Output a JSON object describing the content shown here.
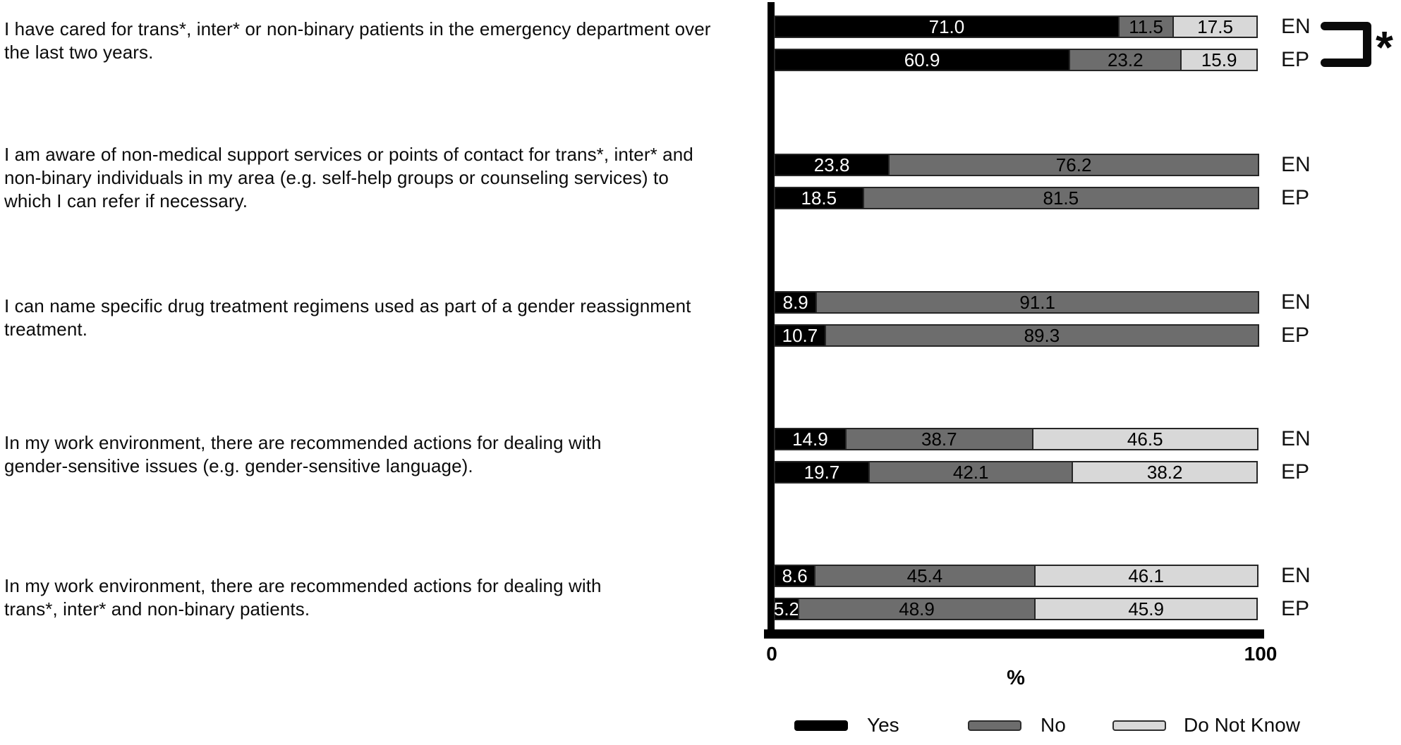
{
  "chart_data": {
    "type": "bar",
    "orientation": "horizontal",
    "stacked": true,
    "xlabel": "%",
    "xlim": [
      0,
      100
    ],
    "x_ticks": [
      "0",
      "100"
    ],
    "grid": false,
    "legend_position": "bottom",
    "legend": [
      {
        "label": "Yes",
        "color": "#000000"
      },
      {
        "label": "No",
        "color": "#6d6d6d"
      },
      {
        "label": "Do Not Know",
        "color": "#d8d8d8"
      }
    ],
    "series_names": [
      "Yes",
      "No",
      "Do Not Know"
    ],
    "groups": [
      {
        "question": "I have cared for trans*, inter* or non-binary patients in the emergency department over the last two years.",
        "question_lines": [
          "I have cared for trans*, inter* or non-binary patients in the emergency department over",
          "the last two years."
        ],
        "significance": "*",
        "bars": [
          {
            "label": "EN",
            "values": [
              71.0,
              11.5,
              17.5
            ]
          },
          {
            "label": "EP",
            "values": [
              60.9,
              23.2,
              15.9
            ]
          }
        ]
      },
      {
        "question": "I am aware of non-medical support services or points of contact for trans*, inter* and non-binary individuals in my area (e.g. self-help groups or counseling services) to which I can refer if necessary.",
        "question_lines": [
          "I am aware of non-medical support services or points of contact for trans*, inter* and",
          "non-binary individuals in my area (e.g. self-help groups or counseling services) to",
          "which I can refer if necessary."
        ],
        "significance": "",
        "bars": [
          {
            "label": "EN",
            "values": [
              23.8,
              76.2,
              null
            ]
          },
          {
            "label": "EP",
            "values": [
              18.5,
              81.5,
              null
            ]
          }
        ]
      },
      {
        "question": "I can name specific drug treatment regimens used as part of a gender reassignment treatment.",
        "question_lines": [
          "I can name specific drug treatment regimens used as part of a gender reassignment",
          "treatment."
        ],
        "significance": "",
        "bars": [
          {
            "label": "EN",
            "values": [
              8.9,
              91.1,
              null
            ]
          },
          {
            "label": "EP",
            "values": [
              10.7,
              89.3,
              null
            ]
          }
        ]
      },
      {
        "question": "In my work environment, there are recommended actions for dealing with gender-sensitive issues (e.g. gender-sensitive language).",
        "question_lines": [
          "In my work environment, there are recommended actions for dealing with",
          "gender-sensitive issues (e.g. gender-sensitive language)."
        ],
        "significance": "",
        "bars": [
          {
            "label": "EN",
            "values": [
              14.9,
              38.7,
              46.5
            ]
          },
          {
            "label": "EP",
            "values": [
              19.7,
              42.1,
              38.2
            ]
          }
        ]
      },
      {
        "question": "In my work environment, there are recommended actions for dealing with trans*, inter* and non-binary patients.",
        "question_lines": [
          "In my work environment, there are recommended actions for dealing with",
          "trans*, inter* and non-binary patients."
        ],
        "significance": "",
        "bars": [
          {
            "label": "EN",
            "values": [
              8.6,
              45.4,
              46.1
            ]
          },
          {
            "label": "EP",
            "values": [
              5.2,
              48.9,
              45.9
            ]
          }
        ]
      }
    ]
  },
  "colors": {
    "yes": "#000000",
    "no": "#6d6d6d",
    "do_not_know": "#d8d8d8",
    "segment_border": "#262626",
    "background": "#ffffff"
  }
}
